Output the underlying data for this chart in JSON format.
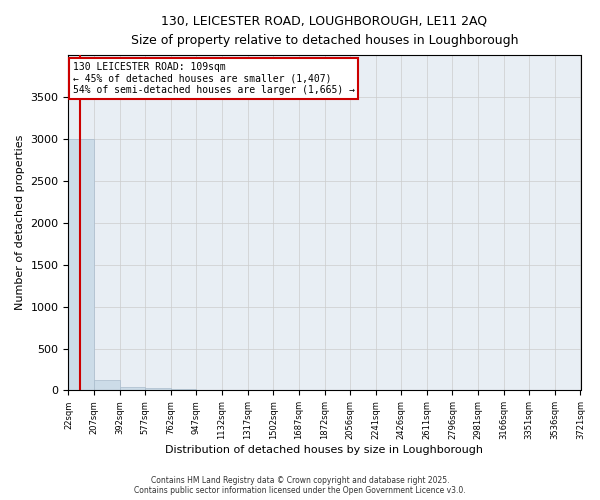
{
  "title": "130, LEICESTER ROAD, LOUGHBOROUGH, LE11 2AQ",
  "subtitle": "Size of property relative to detached houses in Loughborough",
  "xlabel": "Distribution of detached houses by size in Loughborough",
  "ylabel": "Number of detached properties",
  "annotation_line": "130 LEICESTER ROAD: 109sqm",
  "annotation_line2": "← 45% of detached houses are smaller (1,407)",
  "annotation_line3": "54% of semi-detached houses are larger (1,665) →",
  "property_size": 109,
  "bar_color": "#ccdce8",
  "bar_edge_color": "#aabccc",
  "line_color": "#cc0000",
  "annotation_box_color": "#cc0000",
  "bin_edges": [
    22,
    207,
    392,
    577,
    762,
    947,
    1132,
    1317,
    1502,
    1687,
    1872,
    2056,
    2241,
    2426,
    2611,
    2796,
    2981,
    3166,
    3351,
    3536,
    3721
  ],
  "bin_labels": [
    "22sqm",
    "207sqm",
    "392sqm",
    "577sqm",
    "762sqm",
    "947sqm",
    "1132sqm",
    "1317sqm",
    "1502sqm",
    "1687sqm",
    "1872sqm",
    "2056sqm",
    "2241sqm",
    "2426sqm",
    "2611sqm",
    "2796sqm",
    "2981sqm",
    "3166sqm",
    "3351sqm",
    "3536sqm",
    "3721sqm"
  ],
  "counts": [
    3005,
    120,
    45,
    25,
    15,
    10,
    8,
    6,
    5,
    4,
    3,
    3,
    2,
    2,
    2,
    1,
    1,
    1,
    1,
    1
  ],
  "ylim": [
    0,
    4000
  ],
  "yticks": [
    0,
    500,
    1000,
    1500,
    2000,
    2500,
    3000,
    3500
  ],
  "footer_line1": "Contains HM Land Registry data © Crown copyright and database right 2025.",
  "footer_line2": "Contains public sector information licensed under the Open Government Licence v3.0.",
  "background_color": "#ffffff",
  "grid_color": "#cccccc",
  "ax_bg_color": "#e8eef4"
}
